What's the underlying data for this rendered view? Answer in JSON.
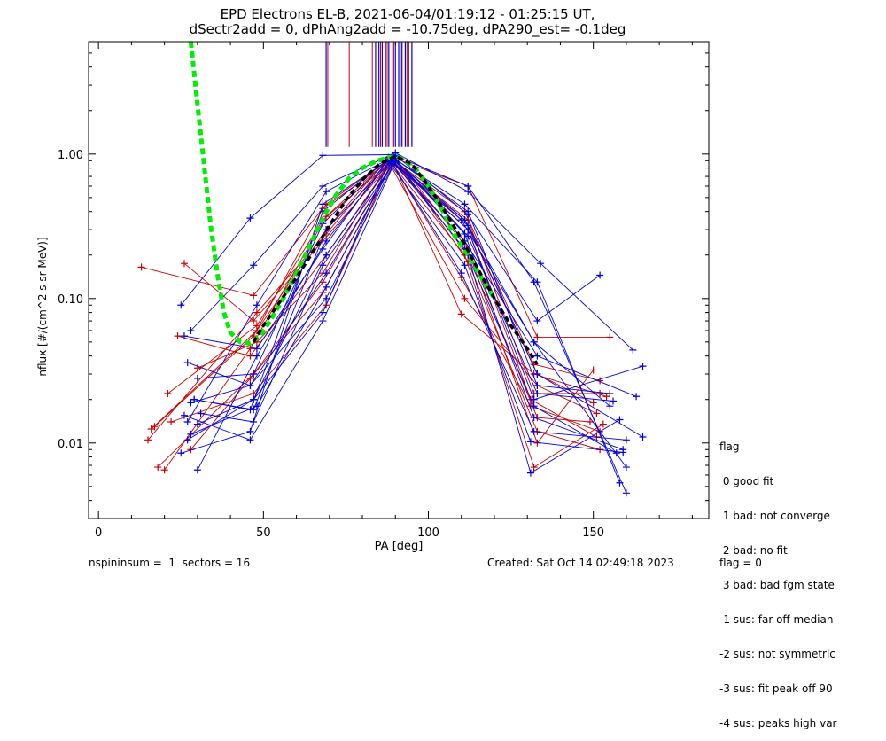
{
  "title_line1": "EPD Electrons EL-B, 2021-06-04/01:19:12 - 01:25:15 UT,",
  "title_line2": "dSectr2add = 0, dPhAng2add = -10.75deg, dPA290_est=  -0.1deg",
  "footer": {
    "nspin_label": "nspininsum =  1  sectors = 16",
    "created": "Created: Sat Oct 14 02:49:18 2023",
    "flag": "flag = 0"
  },
  "flag_legend": {
    "title": "flag",
    "items": [
      " 0 good fit",
      " 1 bad: not converge",
      " 2 bad: no fit",
      " 3 bad: bad fgm state",
      "-1 sus: far off median",
      "-2 sus: not symmetric",
      "-3 sus: fit peak off 90",
      "-4 sus: peaks high var"
    ]
  },
  "colors": {
    "red": "#cc0000",
    "blue": "#0000dd",
    "green": "#00ee00",
    "black": "#000000",
    "purple": "#7700aa"
  },
  "chart_data": {
    "type": "line",
    "xlabel": "PA [deg]",
    "ylabel": "nflux [#/(cm^2 s sr MeV)]",
    "xlim": [
      -3,
      185
    ],
    "ylim": [
      0.003,
      6
    ],
    "yscale": "log",
    "xticks": [
      0,
      50,
      100,
      150
    ],
    "xtick_labels": [
      "0",
      "50",
      "100",
      "150"
    ],
    "yticks": [
      0.01,
      0.1,
      1.0
    ],
    "ytick_labels": [
      "0.01",
      "0.10",
      "1.00"
    ],
    "green_fit": {
      "x": [
        28,
        30,
        32,
        34,
        36,
        38,
        40,
        43,
        46,
        49,
        52,
        56,
        60,
        64,
        68,
        72,
        76,
        80,
        84,
        88,
        90,
        92,
        96,
        100,
        104,
        108,
        112,
        116,
        120
      ],
      "y": [
        6.0,
        2.2,
        0.85,
        0.32,
        0.15,
        0.08,
        0.058,
        0.05,
        0.049,
        0.055,
        0.07,
        0.1,
        0.15,
        0.23,
        0.36,
        0.52,
        0.68,
        0.8,
        0.89,
        0.95,
        0.96,
        0.93,
        0.8,
        0.6,
        0.42,
        0.27,
        0.2,
        0.14,
        0.1
      ]
    },
    "black_median": {
      "x": [
        47,
        50,
        55,
        60,
        65,
        70,
        75,
        80,
        85,
        90,
        95,
        100,
        105,
        110,
        115,
        120,
        125,
        130,
        133
      ],
      "y": [
        0.05,
        0.065,
        0.095,
        0.14,
        0.21,
        0.32,
        0.48,
        0.66,
        0.85,
        0.97,
        0.85,
        0.6,
        0.4,
        0.26,
        0.16,
        0.1,
        0.065,
        0.045,
        0.035
      ]
    },
    "red_series": [
      {
        "x": [
          13,
          47,
          69,
          89,
          112,
          133,
          155
        ],
        "y": [
          0.165,
          0.105,
          0.45,
          0.95,
          0.6,
          0.054,
          0.054
        ]
      },
      {
        "x": [
          17,
          47,
          68,
          89,
          111,
          132,
          152
        ],
        "y": [
          0.013,
          0.055,
          0.42,
          0.92,
          0.4,
          0.035,
          0.027
        ]
      },
      {
        "x": [
          20,
          46,
          69,
          88,
          111,
          133,
          150
        ],
        "y": [
          0.0065,
          0.045,
          0.37,
          0.92,
          0.35,
          0.03,
          0.019
        ]
      },
      {
        "x": [
          21,
          48,
          68,
          89,
          112,
          131,
          151
        ],
        "y": [
          0.022,
          0.065,
          0.35,
          0.9,
          0.3,
          0.02,
          0.011
        ]
      },
      {
        "x": [
          15,
          48,
          69,
          88,
          111,
          132,
          153
        ],
        "y": [
          0.0105,
          0.08,
          0.28,
          0.91,
          0.2,
          0.0068,
          0.0135
        ]
      },
      {
        "x": [
          26,
          47,
          68,
          90,
          112,
          133,
          152
        ],
        "y": [
          0.175,
          0.07,
          0.25,
          0.94,
          0.18,
          0.012,
          0.009
        ]
      },
      {
        "x": [
          24,
          46,
          69,
          89,
          110,
          132,
          154
        ],
        "y": [
          0.055,
          0.04,
          0.2,
          0.9,
          0.078,
          0.03,
          0.021
        ]
      },
      {
        "x": [
          30,
          48,
          68,
          88,
          111,
          133,
          151
        ],
        "y": [
          0.033,
          0.05,
          0.15,
          0.88,
          0.1,
          0.025,
          0.016
        ]
      },
      {
        "x": [
          18,
          47,
          68,
          89,
          110,
          131,
          152
        ],
        "y": [
          0.0068,
          0.03,
          0.13,
          0.86,
          0.14,
          0.018,
          0.012
        ]
      },
      {
        "x": [
          28,
          46,
          68,
          90,
          112,
          133,
          149
        ],
        "y": [
          0.009,
          0.028,
          0.11,
          0.93,
          0.22,
          0.015,
          0.014
        ]
      },
      {
        "x": [
          22,
          47,
          69,
          89,
          111,
          133,
          150
        ],
        "y": [
          0.014,
          0.022,
          0.09,
          0.9,
          0.25,
          0.01,
          0.032
        ]
      },
      {
        "x": [
          16,
          48,
          69,
          88,
          112,
          132,
          152
        ],
        "y": [
          0.0125,
          0.06,
          0.3,
          0.95,
          0.35,
          0.022,
          0.022
        ]
      }
    ],
    "blue_series": [
      {
        "x": [
          25,
          46,
          68,
          89,
          112,
          132,
          160
        ],
        "y": [
          0.09,
          0.36,
          0.98,
          0.99,
          0.6,
          0.13,
          0.0045
        ]
      },
      {
        "x": [
          28,
          47,
          68,
          90,
          112,
          134,
          162
        ],
        "y": [
          0.06,
          0.17,
          0.6,
          1.02,
          0.55,
          0.175,
          0.044
        ]
      },
      {
        "x": [
          30,
          48,
          69,
          89,
          111,
          133,
          158
        ],
        "y": [
          0.0065,
          0.04,
          0.25,
          0.95,
          0.45,
          0.13,
          0.0053
        ]
      },
      {
        "x": [
          26,
          46,
          68,
          90,
          111,
          132,
          160
        ],
        "y": [
          0.0155,
          0.0105,
          0.07,
          0.9,
          0.35,
          0.05,
          0.0068
        ]
      },
      {
        "x": [
          27,
          47,
          69,
          89,
          112,
          132,
          165
        ],
        "y": [
          0.0105,
          0.02,
          0.2,
          0.88,
          0.3,
          0.02,
          0.034
        ]
      },
      {
        "x": [
          29,
          46,
          68,
          88,
          111,
          133,
          163
        ],
        "y": [
          0.02,
          0.017,
          0.4,
          0.93,
          0.25,
          0.04,
          0.021
        ]
      },
      {
        "x": [
          31,
          47,
          68,
          90,
          112,
          131,
          158
        ],
        "y": [
          0.016,
          0.014,
          0.17,
          0.9,
          0.2,
          0.0062,
          0.0145
        ]
      },
      {
        "x": [
          28,
          48,
          69,
          89,
          110,
          132,
          160
        ],
        "y": [
          0.0115,
          0.018,
          0.12,
          0.86,
          0.15,
          0.012,
          0.0105
        ]
      },
      {
        "x": [
          30,
          47,
          68,
          89,
          112,
          133,
          155
        ],
        "y": [
          0.028,
          0.03,
          0.33,
          0.96,
          0.4,
          0.025,
          0.022
        ]
      },
      {
        "x": [
          27,
          46,
          69,
          90,
          111,
          132,
          159
        ],
        "y": [
          0.036,
          0.025,
          0.1,
          0.91,
          0.28,
          0.015,
          0.009
        ]
      },
      {
        "x": [
          26,
          48,
          68,
          88,
          112,
          133,
          165
        ],
        "y": [
          0.055,
          0.045,
          0.22,
          0.93,
          0.32,
          0.03,
          0.011
        ]
      },
      {
        "x": [
          29,
          47,
          69,
          89,
          111,
          132,
          157
        ],
        "y": [
          0.02,
          0.017,
          0.3,
          0.9,
          0.22,
          0.018,
          0.0085
        ]
      },
      {
        "x": [
          25,
          46,
          68,
          90,
          112,
          133,
          152
        ],
        "y": [
          0.0085,
          0.012,
          0.45,
          0.98,
          0.38,
          0.07,
          0.145
        ]
      },
      {
        "x": [
          27,
          48,
          69,
          89,
          110,
          132,
          155
        ],
        "y": [
          0.014,
          0.09,
          0.55,
          0.95,
          0.35,
          0.05,
          0.018
        ]
      },
      {
        "x": [
          30,
          47,
          68,
          88,
          111,
          131,
          159
        ],
        "y": [
          0.0135,
          0.02,
          0.08,
          0.88,
          0.17,
          0.0102,
          0.0086
        ]
      },
      {
        "x": [
          28,
          46,
          69,
          90,
          112,
          133,
          156
        ],
        "y": [
          0.019,
          0.025,
          0.15,
          0.92,
          0.27,
          0.022,
          0.0195
        ]
      }
    ],
    "vertical_markers": {
      "y_top": 6,
      "y_bottom": 1.12,
      "blue_x": [
        69,
        84,
        85,
        86,
        87,
        88,
        89,
        90,
        91,
        92,
        93,
        94,
        95
      ],
      "red_x": [
        69.5,
        76,
        83,
        85.5,
        87.5,
        89.5,
        91.5,
        93.5
      ]
    }
  }
}
